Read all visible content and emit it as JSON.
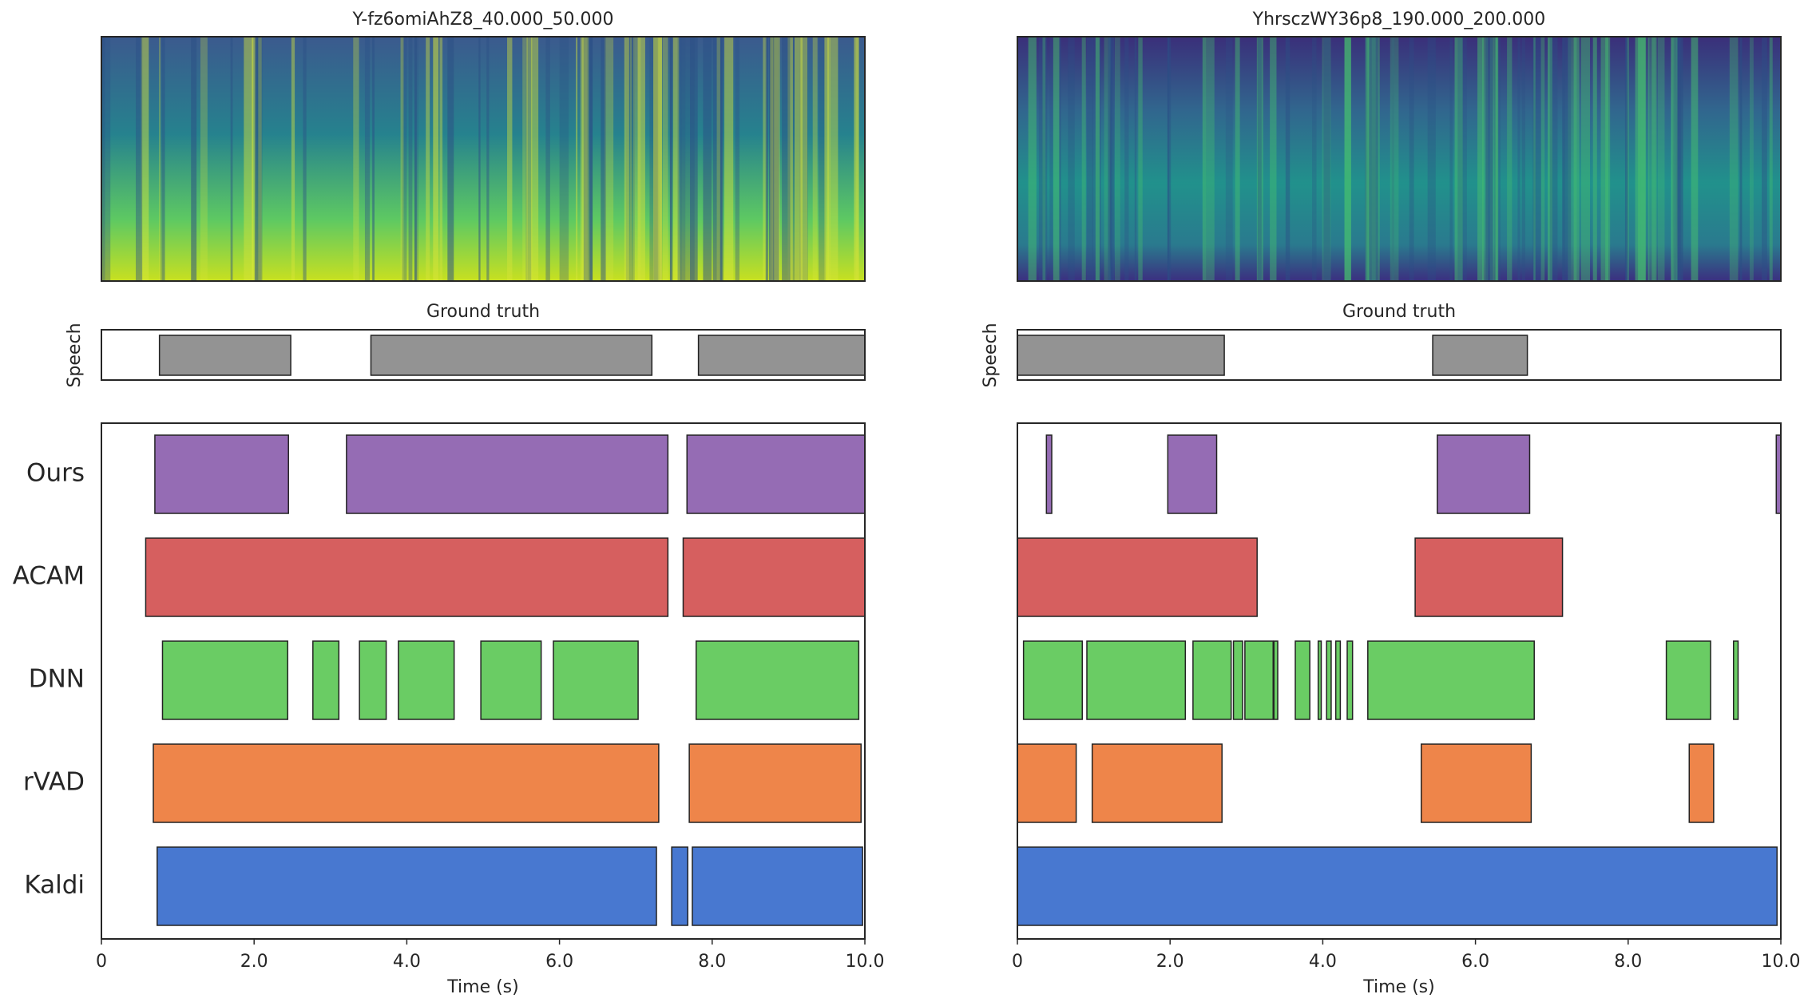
{
  "chart_data": [
    {
      "type": "segments",
      "title": "Y-fz6omiAhZ8_40.000_50.000",
      "ground_truth_title": "Ground truth",
      "ground_truth_label": "Speech",
      "ground_truth": {
        "color": "#939393",
        "segments": [
          [
            0.76,
            2.48
          ],
          [
            3.53,
            7.21
          ],
          [
            7.82,
            10
          ]
        ]
      },
      "series": [
        {
          "name": "Ours",
          "color": "#956cb4",
          "segments": [
            [
              0.7,
              2.45
            ],
            [
              3.21,
              7.42
            ],
            [
              7.67,
              10
            ]
          ]
        },
        {
          "name": "ACAM",
          "color": "#d65f5f",
          "segments": [
            [
              0.58,
              7.42
            ],
            [
              7.62,
              10
            ]
          ]
        },
        {
          "name": "DNN",
          "color": "#6acc64",
          "segments": [
            [
              0.8,
              2.44
            ],
            [
              2.77,
              3.11
            ],
            [
              3.38,
              3.73
            ],
            [
              3.89,
              4.62
            ],
            [
              4.97,
              5.76
            ],
            [
              5.92,
              7.03
            ],
            [
              7.79,
              9.92
            ]
          ]
        },
        {
          "name": "rVAD",
          "color": "#ee854a",
          "segments": [
            [
              0.68,
              7.3
            ],
            [
              7.7,
              9.95
            ]
          ]
        },
        {
          "name": "Kaldi",
          "color": "#4878d0",
          "segments": [
            [
              0.73,
              7.27
            ],
            [
              7.47,
              7.68
            ],
            [
              7.74,
              9.97
            ]
          ]
        }
      ],
      "xlabel": "Time (s)",
      "xlim": [
        0,
        10
      ],
      "xticks": [
        0,
        {
          "value": 2,
          "label": "2.0"
        },
        {
          "value": 4,
          "label": "4.0"
        },
        {
          "value": 6,
          "label": "6.0"
        },
        {
          "value": 8,
          "label": "8.0"
        },
        {
          "value": 10,
          "label": "10.0"
        }
      ]
    },
    {
      "type": "segments",
      "title": "YhrsczWY36p8_190.000_200.000",
      "ground_truth_title": "Ground truth",
      "ground_truth_label": "Speech",
      "ground_truth": {
        "color": "#939393",
        "segments": [
          [
            0,
            2.71
          ],
          [
            5.44,
            6.68
          ]
        ]
      },
      "series": [
        {
          "color": "#956cb4",
          "segments": [
            [
              0.38,
              0.45
            ],
            [
              1.97,
              2.61
            ],
            [
              5.5,
              6.71
            ],
            [
              9.94,
              10
            ]
          ]
        },
        {
          "color": "#d65f5f",
          "segments": [
            [
              0,
              3.14
            ],
            [
              5.21,
              7.14
            ]
          ]
        },
        {
          "color": "#6acc64",
          "segments": [
            [
              0.08,
              0.85
            ],
            [
              0.91,
              2.2
            ],
            [
              2.3,
              2.8
            ],
            [
              2.83,
              2.95
            ],
            [
              2.98,
              3.35
            ],
            [
              3.36,
              3.41
            ],
            [
              3.64,
              3.83
            ],
            [
              3.94,
              3.98
            ],
            [
              4.05,
              4.11
            ],
            [
              4.17,
              4.23
            ],
            [
              4.32,
              4.39
            ],
            [
              4.59,
              6.77
            ],
            [
              8.5,
              9.08
            ],
            [
              9.38,
              9.44
            ]
          ]
        },
        {
          "color": "#ee854a",
          "segments": [
            [
              0,
              0.77
            ],
            [
              0.98,
              2.68
            ],
            [
              5.29,
              6.73
            ],
            [
              8.8,
              9.12
            ]
          ]
        },
        {
          "color": "#4878d0",
          "segments": [
            [
              0,
              9.95
            ]
          ]
        }
      ],
      "xlabel": "Time (s)",
      "xlim": [
        0,
        10
      ],
      "xticks": [
        0,
        {
          "value": 2,
          "label": "2.0"
        },
        {
          "value": 4,
          "label": "4.0"
        },
        {
          "value": 6,
          "label": "6.0"
        },
        {
          "value": 8,
          "label": "8.0"
        },
        {
          "value": 10,
          "label": "10.0"
        }
      ]
    }
  ]
}
